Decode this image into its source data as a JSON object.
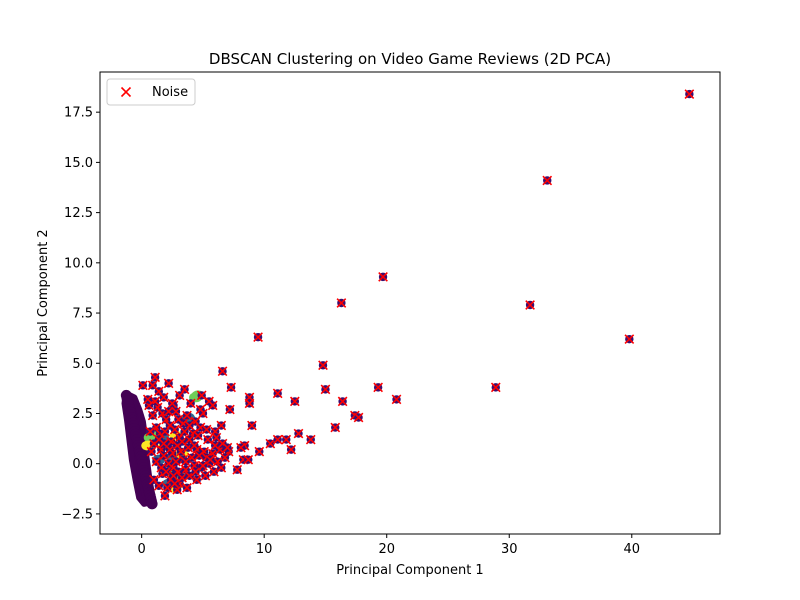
{
  "chart_data": {
    "type": "scatter",
    "title": "DBSCAN Clustering on Video Game Reviews (2D PCA)",
    "xlabel": "Principal Component 1",
    "ylabel": "Principal Component 2",
    "xlim": [
      -3.4,
      47.2
    ],
    "ylim": [
      -3.5,
      19.5
    ],
    "xticks": [
      0,
      10,
      20,
      30,
      40
    ],
    "yticks": [
      -2.5,
      0.0,
      2.5,
      5.0,
      7.5,
      10.0,
      12.5,
      15.0,
      17.5
    ],
    "legend": {
      "placement": "top-left",
      "entries": [
        {
          "label": "Noise",
          "marker": "x",
          "color": "#e31a1c"
        }
      ]
    },
    "colors": {
      "cluster_main": "#440154",
      "noise_point": "#3b0f70",
      "noise_marker": "#ff0000",
      "cluster_teal": "#31688e",
      "cluster_green": "#6ece58",
      "cluster_yellow": "#fde725"
    },
    "main_cluster_band": [
      [
        -1.3,
        3.5
      ],
      [
        -0.6,
        3.3
      ],
      [
        -0.2,
        2.7
      ],
      [
        0.1,
        2.1
      ],
      [
        0.3,
        1.2
      ],
      [
        0.4,
        0.3
      ],
      [
        0.6,
        -0.6
      ],
      [
        0.8,
        -1.4
      ],
      [
        0.6,
        -1.95
      ],
      [
        0.2,
        -2.0
      ],
      [
        -0.2,
        -1.7
      ],
      [
        -0.5,
        -0.8
      ],
      [
        -0.8,
        0.2
      ],
      [
        -1.0,
        1.2
      ],
      [
        -1.2,
        2.2
      ],
      [
        -1.4,
        3.0
      ]
    ],
    "noise_points": [
      [
        44.7,
        18.4
      ],
      [
        33.1,
        14.1
      ],
      [
        19.7,
        9.3
      ],
      [
        16.3,
        8.0
      ],
      [
        31.7,
        7.9
      ],
      [
        39.8,
        6.2
      ],
      [
        9.5,
        6.3
      ],
      [
        6.6,
        4.6
      ],
      [
        14.8,
        4.9
      ],
      [
        28.9,
        3.8
      ],
      [
        19.3,
        3.8
      ],
      [
        15.0,
        3.7
      ],
      [
        20.8,
        3.2
      ],
      [
        16.4,
        3.1
      ],
      [
        11.1,
        3.5
      ],
      [
        12.5,
        3.1
      ],
      [
        7.3,
        3.8
      ],
      [
        8.8,
        3.3
      ],
      [
        8.8,
        3.0
      ],
      [
        7.2,
        2.7
      ],
      [
        10.5,
        1.0
      ],
      [
        11.1,
        1.2
      ],
      [
        11.8,
        1.2
      ],
      [
        12.2,
        0.7
      ],
      [
        12.8,
        1.5
      ],
      [
        13.8,
        1.2
      ],
      [
        15.8,
        1.8
      ],
      [
        17.4,
        2.4
      ],
      [
        17.7,
        2.3
      ],
      [
        9.0,
        1.9
      ],
      [
        9.6,
        0.6
      ],
      [
        8.4,
        0.9
      ],
      [
        8.1,
        0.8
      ],
      [
        7.8,
        -0.3
      ],
      [
        8.3,
        0.2
      ],
      [
        8.7,
        0.2
      ],
      [
        6.5,
        1.9
      ],
      [
        6.0,
        1.6
      ],
      [
        5.0,
        2.5
      ],
      [
        5.8,
        2.9
      ],
      [
        5.5,
        3.1
      ],
      [
        4.9,
        3.4
      ],
      [
        3.5,
        3.7
      ],
      [
        3.1,
        3.4
      ],
      [
        2.2,
        4.0
      ],
      [
        1.1,
        4.3
      ],
      [
        0.9,
        3.9
      ],
      [
        0.1,
        3.9
      ],
      [
        1.4,
        3.6
      ],
      [
        1.8,
        3.3
      ],
      [
        2.6,
        2.9
      ],
      [
        2.8,
        2.6
      ],
      [
        3.7,
        2.4
      ],
      [
        4.4,
        2.1
      ],
      [
        4.8,
        1.8
      ],
      [
        5.3,
        1.7
      ],
      [
        4.2,
        1.5
      ],
      [
        3.1,
        1.3
      ],
      [
        2.4,
        1.1
      ],
      [
        2.1,
        0.9
      ],
      [
        1.6,
        0.7
      ],
      [
        1.8,
        0.4
      ],
      [
        2.5,
        0.5
      ],
      [
        3.2,
        0.6
      ],
      [
        3.8,
        0.8
      ],
      [
        4.5,
        0.7
      ],
      [
        5.1,
        0.6
      ],
      [
        5.8,
        0.5
      ],
      [
        6.4,
        0.7
      ],
      [
        7.1,
        0.6
      ],
      [
        6.8,
        0.3
      ],
      [
        6.2,
        0.1
      ],
      [
        5.5,
        0.0
      ],
      [
        4.9,
        -0.2
      ],
      [
        4.3,
        -0.1
      ],
      [
        3.6,
        -0.3
      ],
      [
        3.0,
        -0.4
      ],
      [
        2.6,
        -0.2
      ],
      [
        2.2,
        0.0
      ],
      [
        1.7,
        -0.5
      ],
      [
        2.4,
        -0.8
      ],
      [
        3.1,
        -1.0
      ],
      [
        3.7,
        -1.2
      ],
      [
        4.5,
        -0.8
      ],
      [
        5.2,
        -0.6
      ],
      [
        5.9,
        -0.4
      ],
      [
        6.5,
        -0.2
      ],
      [
        2.9,
        -1.3
      ],
      [
        1.9,
        -1.6
      ],
      [
        3.4,
        0.2
      ],
      [
        4.1,
        0.3
      ],
      [
        4.7,
        0.4
      ],
      [
        5.3,
        0.3
      ],
      [
        6.0,
        0.9
      ],
      [
        6.6,
        1.0
      ],
      [
        7.0,
        0.8
      ],
      [
        1.3,
        2.8
      ],
      [
        1.7,
        2.5
      ],
      [
        2.0,
        2.2
      ],
      [
        2.3,
        1.9
      ],
      [
        2.7,
        1.7
      ],
      [
        3.4,
        2.0
      ],
      [
        3.9,
        1.9
      ],
      [
        4.6,
        1.4
      ],
      [
        1.2,
        1.8
      ],
      [
        1.5,
        1.5
      ],
      [
        0.9,
        2.4
      ],
      [
        1.1,
        3.1
      ],
      [
        0.6,
        2.9
      ],
      [
        1.0,
        1.0
      ],
      [
        1.4,
        1.2
      ],
      [
        1.8,
        1.0
      ],
      [
        2.3,
        0.7
      ],
      [
        2.9,
        0.9
      ],
      [
        3.3,
        1.1
      ],
      [
        3.9,
        1.2
      ],
      [
        4.3,
        0.9
      ],
      [
        1.2,
        0.1
      ],
      [
        1.6,
        -0.2
      ],
      [
        2.0,
        -0.4
      ],
      [
        2.6,
        -0.6
      ],
      [
        3.3,
        -0.7
      ],
      [
        3.9,
        -0.6
      ],
      [
        4.4,
        -0.4
      ],
      [
        5.0,
        -0.1
      ],
      [
        5.6,
        0.2
      ],
      [
        0.8,
        0.6
      ],
      [
        1.0,
        -0.8
      ],
      [
        1.4,
        -1.1
      ],
      [
        2.1,
        -1.2
      ],
      [
        2.7,
        -1.0
      ],
      [
        3.5,
        1.6
      ],
      [
        2.5,
        3.0
      ],
      [
        3.0,
        2.2
      ],
      [
        0.5,
        3.2
      ],
      [
        0.7,
        1.6
      ],
      [
        4.0,
        3.0
      ],
      [
        4.8,
        2.7
      ],
      [
        5.4,
        1.2
      ],
      [
        6.1,
        1.3
      ],
      [
        3.6,
        0.1
      ],
      [
        2.8,
        0.1
      ],
      [
        1.9,
        1.6
      ],
      [
        2.2,
        2.6
      ]
    ],
    "small_clusters": [
      {
        "color": "#31688e",
        "points": [
          [
            3.8,
            2.3
          ],
          [
            3.9,
            2.2
          ],
          [
            2.5,
            0.3
          ],
          [
            1.4,
            0.2
          ],
          [
            2.2,
            -1.0
          ],
          [
            1.7,
            1.3
          ]
        ]
      },
      {
        "color": "#6ece58",
        "points": [
          [
            4.4,
            3.3
          ],
          [
            4.6,
            3.4
          ],
          [
            0.7,
            1.3
          ],
          [
            1.0,
            1.5
          ],
          [
            2.4,
            -0.4
          ],
          [
            3.0,
            -0.6
          ]
        ]
      },
      {
        "color": "#fde725",
        "points": [
          [
            2.6,
            -1.2
          ],
          [
            2.8,
            -1.1
          ],
          [
            2.8,
            1.4
          ],
          [
            1.9,
            0.9
          ],
          [
            0.5,
            0.9
          ],
          [
            3.3,
            0.5
          ]
        ]
      }
    ]
  }
}
